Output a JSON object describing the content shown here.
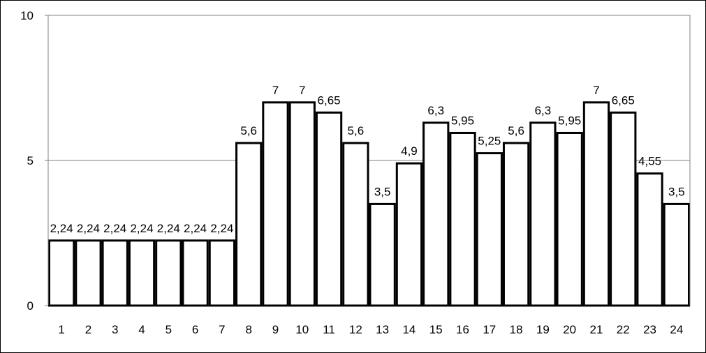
{
  "chart_data": {
    "type": "bar",
    "categories": [
      "1",
      "2",
      "3",
      "4",
      "5",
      "6",
      "7",
      "8",
      "9",
      "10",
      "11",
      "12",
      "13",
      "14",
      "15",
      "16",
      "17",
      "18",
      "19",
      "20",
      "21",
      "22",
      "23",
      "24"
    ],
    "values": [
      2.24,
      2.24,
      2.24,
      2.24,
      2.24,
      2.24,
      2.24,
      5.6,
      7,
      7,
      6.65,
      5.6,
      3.5,
      4.9,
      6.3,
      5.95,
      5.25,
      5.6,
      6.3,
      5.95,
      7,
      6.65,
      4.55,
      3.5
    ],
    "data_labels": [
      "2,24",
      "2,24",
      "2,24",
      "2,24",
      "2,24",
      "2,24",
      "2,24",
      "5,6",
      "7",
      "7",
      "6,65",
      "5,6",
      "3,5",
      "4,9",
      "6,3",
      "5,95",
      "5,25",
      "5,6",
      "6,3",
      "5,95",
      "7",
      "6,65",
      "4,55",
      "3,5"
    ],
    "y_ticks": [
      "0",
      "5",
      "10"
    ],
    "ylim": [
      0,
      10
    ],
    "title": "",
    "xlabel": "",
    "ylabel": "",
    "grid": true,
    "colors": {
      "bar_fill": "#ffffff",
      "bar_stroke": "#000000",
      "gridline": "#808080",
      "axis": "#808080"
    }
  }
}
